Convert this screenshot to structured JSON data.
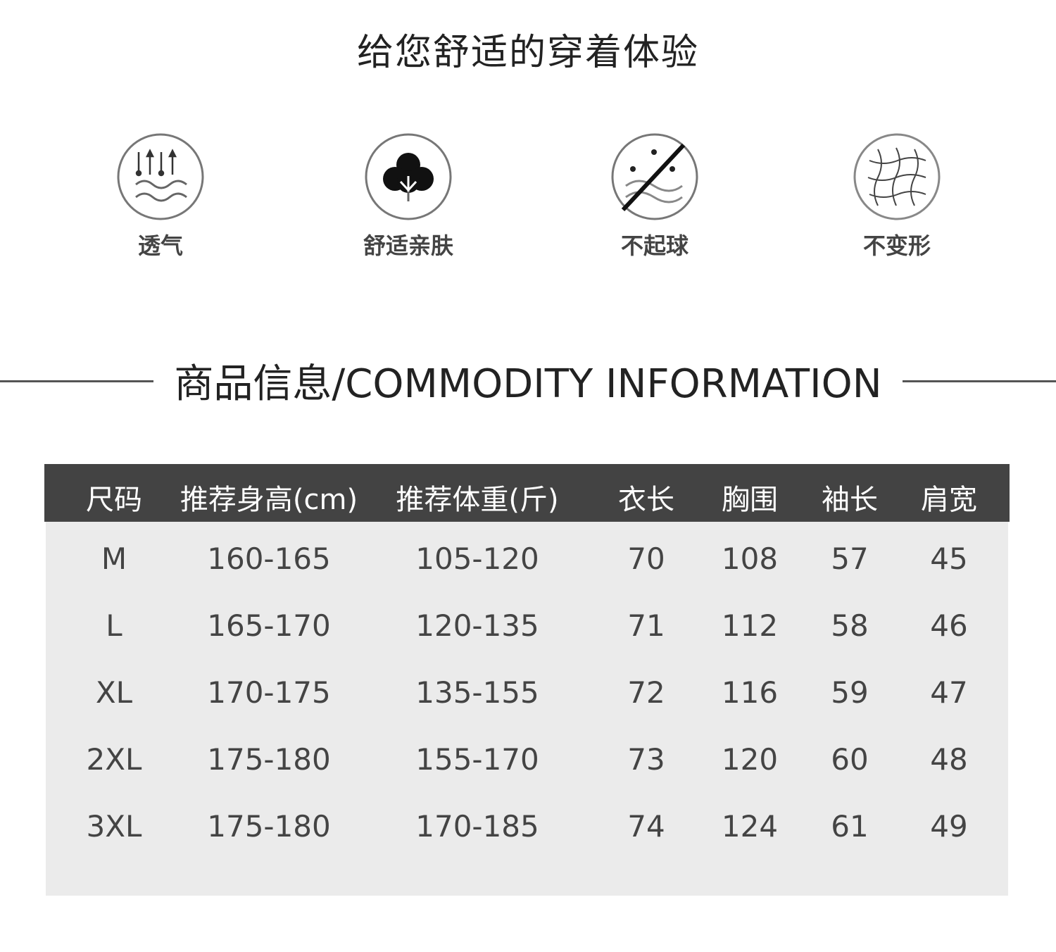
{
  "header": {
    "title": "给您舒适的穿着体验"
  },
  "features": [
    {
      "icon": "breathable-icon",
      "label": "透气"
    },
    {
      "icon": "cotton-icon",
      "label": "舒适亲肤"
    },
    {
      "icon": "no-pilling-icon",
      "label": "不起球"
    },
    {
      "icon": "fiber-mesh-icon",
      "label": "不变形"
    }
  ],
  "section": {
    "title": "商品信息/COMMODITY INFORMATION"
  },
  "table": {
    "headers": [
      "尺码",
      "推荐身高(cm)",
      "推荐体重(斤)",
      "衣长",
      "胸围",
      "袖长",
      "肩宽"
    ],
    "rows": [
      [
        "M",
        "160-165",
        "105-120",
        "70",
        "108",
        "57",
        "45"
      ],
      [
        "L",
        "165-170",
        "120-135",
        "71",
        "112",
        "58",
        "46"
      ],
      [
        "XL",
        "170-175",
        "135-155",
        "72",
        "116",
        "59",
        "47"
      ],
      [
        "2XL",
        "175-180",
        "155-170",
        "73",
        "120",
        "60",
        "48"
      ],
      [
        "3XL",
        "175-180",
        "170-185",
        "74",
        "124",
        "61",
        "49"
      ]
    ]
  },
  "colors": {
    "header_bg": "#434343",
    "body_bg": "#ebebeb"
  }
}
